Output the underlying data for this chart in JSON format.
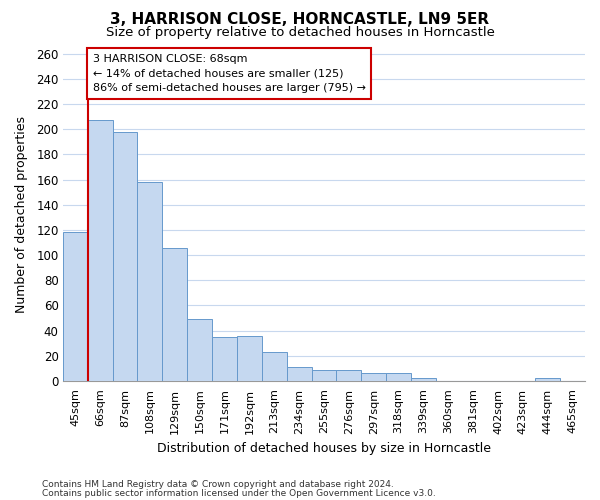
{
  "title": "3, HARRISON CLOSE, HORNCASTLE, LN9 5ER",
  "subtitle": "Size of property relative to detached houses in Horncastle",
  "xlabel": "Distribution of detached houses by size in Horncastle",
  "ylabel": "Number of detached properties",
  "categories": [
    "45sqm",
    "66sqm",
    "87sqm",
    "108sqm",
    "129sqm",
    "150sqm",
    "171sqm",
    "192sqm",
    "213sqm",
    "234sqm",
    "255sqm",
    "276sqm",
    "297sqm",
    "318sqm",
    "339sqm",
    "360sqm",
    "381sqm",
    "402sqm",
    "423sqm",
    "444sqm",
    "465sqm"
  ],
  "values": [
    118,
    207,
    198,
    158,
    106,
    49,
    35,
    36,
    23,
    11,
    9,
    9,
    6,
    6,
    2,
    0,
    0,
    0,
    0,
    2,
    0
  ],
  "bar_color": "#c5d8f0",
  "bar_edge_color": "#6699cc",
  "annotation_label": "3 HARRISON CLOSE: 68sqm",
  "annotation_line1": "← 14% of detached houses are smaller (125)",
  "annotation_line2": "86% of semi-detached houses are larger (795) →",
  "vline_color": "#cc0000",
  "annotation_box_facecolor": "#ffffff",
  "annotation_box_edgecolor": "#cc0000",
  "ylim": [
    0,
    265
  ],
  "yticks": [
    0,
    20,
    40,
    60,
    80,
    100,
    120,
    140,
    160,
    180,
    200,
    220,
    240,
    260
  ],
  "plot_bg_color": "#ffffff",
  "fig_bg_color": "#ffffff",
  "grid_color": "#c8d8ee",
  "footer_line1": "Contains HM Land Registry data © Crown copyright and database right 2024.",
  "footer_line2": "Contains public sector information licensed under the Open Government Licence v3.0."
}
